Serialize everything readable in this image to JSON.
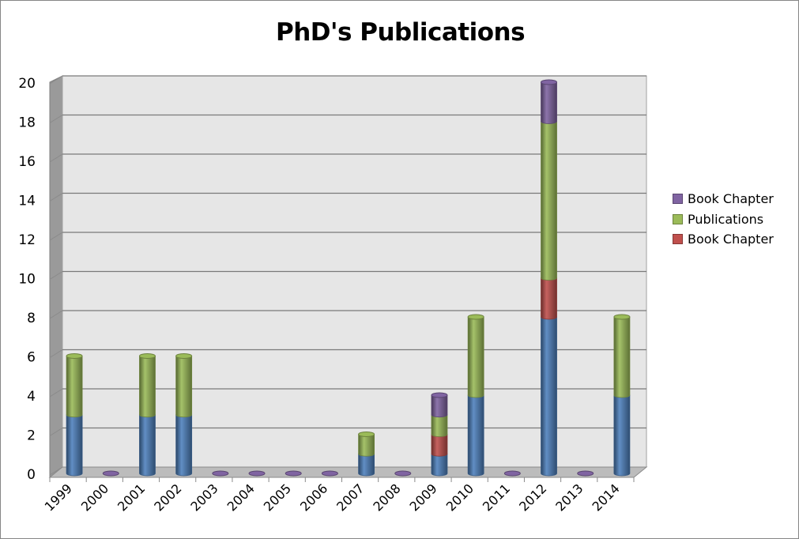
{
  "chart_data": {
    "type": "bar",
    "stacked": true,
    "title": "PhD's Publications",
    "xlabel": "",
    "ylabel": "",
    "ylim": [
      0,
      20
    ],
    "yticks": [
      0,
      2,
      4,
      6,
      8,
      10,
      12,
      14,
      16,
      18,
      20
    ],
    "grid": true,
    "legend_position": "right",
    "categories": [
      "1999",
      "2000",
      "2001",
      "2002",
      "2003",
      "2004",
      "2005",
      "2006",
      "2007",
      "2008",
      "2009",
      "2010",
      "2011",
      "2012",
      "2013",
      "2014"
    ],
    "series": [
      {
        "name": "",
        "color": "#4f81bd",
        "in_legend": false,
        "values": [
          3,
          0,
          3,
          3,
          0,
          0,
          0,
          0,
          1,
          0,
          1,
          4,
          0,
          8,
          0,
          4
        ]
      },
      {
        "name": "Book Chapter",
        "color": "#c0504d",
        "in_legend": true,
        "values": [
          0,
          0,
          0,
          0,
          0,
          0,
          0,
          0,
          0,
          0,
          1,
          0,
          0,
          2,
          0,
          0
        ]
      },
      {
        "name": "Publications",
        "color": "#9bbb59",
        "in_legend": true,
        "values": [
          3,
          0,
          3,
          3,
          0,
          0,
          0,
          0,
          1,
          0,
          1,
          4,
          0,
          8,
          0,
          4
        ]
      },
      {
        "name": "Book Chapter",
        "color": "#8064a2",
        "in_legend": true,
        "values": [
          0,
          0,
          0,
          0,
          0,
          0,
          0,
          0,
          0,
          0,
          1,
          0,
          0,
          2,
          0,
          0
        ]
      }
    ],
    "legend": [
      {
        "label": "Book Chapter",
        "color": "#8064a2"
      },
      {
        "label": "Publications",
        "color": "#9bbb59"
      },
      {
        "label": "Book Chapter",
        "color": "#c0504d"
      }
    ]
  }
}
